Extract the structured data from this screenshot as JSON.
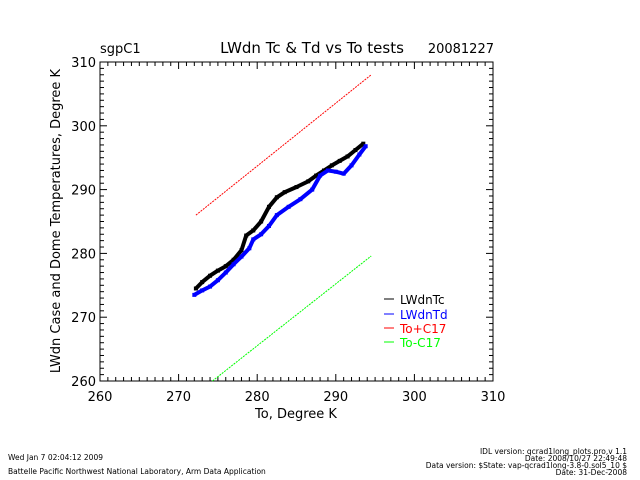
{
  "header": {
    "site": "sgpC1",
    "title": "LWdn Tc & Td vs To tests",
    "date": "20081227"
  },
  "footer": {
    "run_time": "Wed Jan  7 02:04:12 2009",
    "lab": "Battelle Pacific Northwest National Laboratory, Arm Data Application",
    "idl_version": "IDL version: qcrad1long_plots.pro,v 1.1",
    "idl_date": "Date: 2008/10/27 22:49:48",
    "data_version": "Data version: $State: vap-qcrad1long-3.8-0.sol5_10 $",
    "data_date": "Date: 31-Dec-2008"
  },
  "colors": {
    "tc": "#000000",
    "td": "#0000ff",
    "plus": "#ff0000",
    "minus": "#00ff00"
  },
  "chart_data": {
    "type": "scatter",
    "title": "LWdn Tc & Td vs To tests",
    "xlabel": "To, Degree K",
    "ylabel": "LWdn Case and Dome Temperatures, Degree K",
    "xlim": [
      260,
      310
    ],
    "ylim": [
      260,
      310
    ],
    "xticks": [
      "260",
      "270",
      "280",
      "290",
      "300",
      "310"
    ],
    "yticks": [
      "260",
      "270",
      "280",
      "290",
      "300",
      "310"
    ],
    "legend": [
      "LWdnTc",
      "LWdnTd",
      "To+C17",
      "To-C17"
    ],
    "legend_position": "lower-right",
    "series": [
      {
        "name": "LWdnTc",
        "color": "#000000",
        "x": [
          272.2,
          273,
          274,
          275,
          276,
          277,
          278,
          278.6,
          279.5,
          280.5,
          281.5,
          282.5,
          283.5,
          285,
          286.5,
          287.5,
          288.5,
          289.5,
          290.5,
          291.5,
          292.5,
          293.5
        ],
        "y": [
          274.5,
          275.5,
          276.5,
          277.3,
          278,
          279,
          280.5,
          282.8,
          283.6,
          285,
          287.3,
          288.8,
          289.6,
          290.4,
          291.3,
          292.2,
          293,
          293.8,
          294.5,
          295.2,
          296.2,
          297.2
        ]
      },
      {
        "name": "LWdnTd",
        "color": "#0000ff",
        "x": [
          272,
          273,
          274,
          275,
          276,
          277,
          278,
          279,
          279.5,
          280.5,
          281.5,
          282.5,
          284,
          285.5,
          287,
          288,
          289,
          290,
          291,
          292,
          293,
          293.8
        ],
        "y": [
          273.5,
          274.2,
          274.8,
          275.8,
          277,
          278.3,
          279.5,
          280.8,
          282.2,
          283,
          284.3,
          286,
          287.3,
          288.5,
          290,
          292.2,
          293,
          292.8,
          292.5,
          293.8,
          295.5,
          296.8
        ]
      },
      {
        "name": "To+C17",
        "color": "#ff0000",
        "x": [
          272.2,
          294.5
        ],
        "y": [
          286,
          308
        ]
      },
      {
        "name": "To-C17",
        "color": "#00ff00",
        "x": [
          274.3,
          294.5
        ],
        "y": [
          260,
          279.6
        ]
      }
    ]
  }
}
